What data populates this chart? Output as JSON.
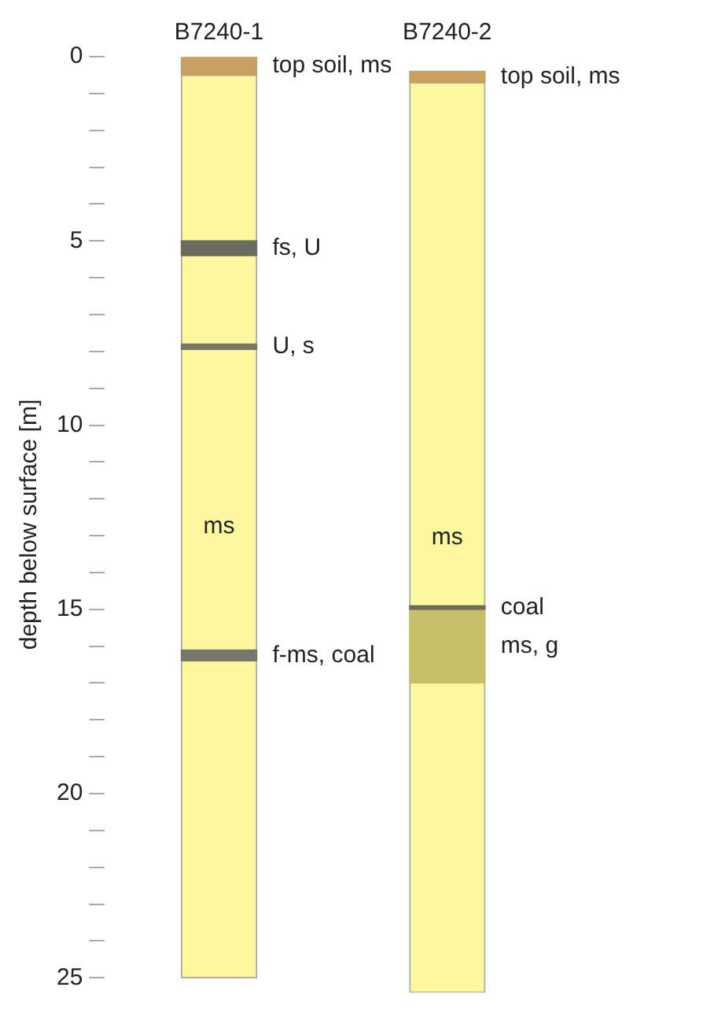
{
  "chart_data": {
    "type": "bar",
    "categories": [
      "B7240-1",
      "B7240-2"
    ],
    "ylabel": "depth below surface [m]",
    "ylim": [
      25.4,
      0
    ],
    "yticks": [
      0,
      {
        "value": 1,
        "label": null
      },
      {
        "value": 2,
        "label": null
      },
      {
        "value": 3,
        "label": null
      },
      {
        "value": 4,
        "label": null
      },
      5,
      {
        "value": 6,
        "label": null
      },
      {
        "value": 7,
        "label": null
      },
      {
        "value": 8,
        "label": null
      },
      {
        "value": 9,
        "label": null
      },
      10,
      {
        "value": 11,
        "label": null
      },
      {
        "value": 12,
        "label": null
      },
      {
        "value": 13,
        "label": null
      },
      {
        "value": 14,
        "label": null
      },
      15,
      {
        "value": 16,
        "label": null
      },
      {
        "value": 17,
        "label": null
      },
      {
        "value": 18,
        "label": null
      },
      {
        "value": 19,
        "label": null
      },
      20,
      {
        "value": 21,
        "label": null
      },
      {
        "value": 22,
        "label": null
      },
      {
        "value": 23,
        "label": null
      },
      {
        "value": 24,
        "label": null
      },
      25
    ],
    "series": [
      {
        "name": "ms",
        "color": "#fdf8a0",
        "values": [
          24.5,
          24.7
        ],
        "base": [
          0.5,
          0.7
        ]
      },
      {
        "name": "top soil, ms",
        "color": "#c8a064",
        "values": [
          0.5,
          null
        ],
        "base": [
          0,
          null
        ]
      },
      {
        "name": "top soil, ms",
        "color": "#c8a064",
        "values": [
          null,
          0.3
        ],
        "base": [
          null,
          0.4
        ]
      },
      {
        "name": "fs, U",
        "color": "#6b6b5e",
        "values": [
          0.4,
          null
        ],
        "base": [
          5,
          null
        ]
      },
      {
        "name": "U, s",
        "color": "#77776a",
        "values": [
          0.15,
          null
        ],
        "base": [
          7.8,
          null
        ]
      },
      {
        "name": "f-ms, coal",
        "color": "#77776a",
        "values": [
          0.3,
          null
        ],
        "base": [
          16.1,
          null
        ]
      },
      {
        "name": "coal",
        "color": "#6b6b5e",
        "values": [
          null,
          0.1
        ],
        "base": [
          null,
          14.9
        ]
      },
      {
        "name": "ms, g",
        "color": "#c8c068",
        "values": [
          null,
          2
        ],
        "base": [
          null,
          15
        ]
      }
    ],
    "grid": false,
    "legend": false
  }
}
